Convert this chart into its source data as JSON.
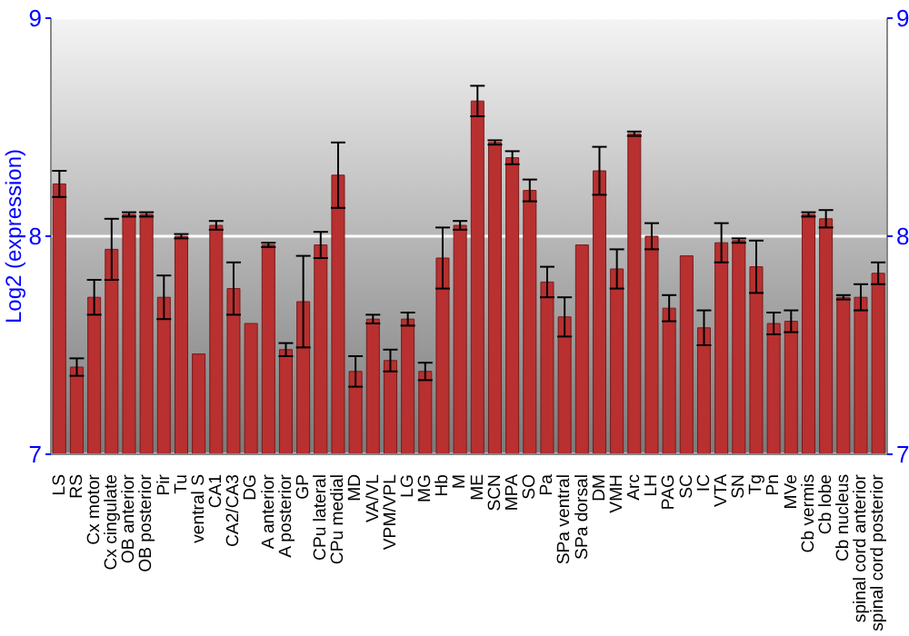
{
  "chart_data": {
    "type": "bar",
    "ylabel": "Log2 (expression)",
    "categories": [
      "LS",
      "RS",
      "Cx motor",
      "Cx cingulate",
      "OB anterior",
      "OB posterior",
      "Pir",
      "Tu",
      "ventral S",
      "CA1",
      "CA2/CA3",
      "DG",
      "A anterior",
      "A posterior",
      "GP",
      "CPu lateral",
      "CPu medial",
      "MD",
      "VA/VL",
      "VPM/VPL",
      "LG",
      "MG",
      "Hb",
      "M",
      "ME",
      "SCN",
      "MPA",
      "SO",
      "Pa",
      "SPa ventral",
      "SPa dorsal",
      "DM",
      "VMH",
      "Arc",
      "LH",
      "PAG",
      "SC",
      "IC",
      "VTA",
      "SN",
      "Tg",
      "Pn",
      "MVe",
      "Cb vermis",
      "Cb lobe",
      "Cb nucleus",
      "spinal cord anterior",
      "spinal cord posterior"
    ],
    "values": [
      8.24,
      7.4,
      7.72,
      7.94,
      8.1,
      8.1,
      7.72,
      8.0,
      7.46,
      8.05,
      7.76,
      7.6,
      7.96,
      7.48,
      7.7,
      7.96,
      8.28,
      7.38,
      7.62,
      7.43,
      7.62,
      7.38,
      7.9,
      8.05,
      8.62,
      8.43,
      8.36,
      8.21,
      7.79,
      7.63,
      7.96,
      8.3,
      7.85,
      8.47,
      8.0,
      7.67,
      7.91,
      7.58,
      7.97,
      7.98,
      7.86,
      7.6,
      7.61,
      8.1,
      8.08,
      7.72,
      7.72,
      7.83
    ],
    "errors": [
      0.06,
      0.04,
      0.08,
      0.14,
      0.01,
      0.01,
      0.1,
      0.01,
      null,
      0.02,
      0.12,
      null,
      0.01,
      0.03,
      0.21,
      0.06,
      0.15,
      0.07,
      0.02,
      0.05,
      0.03,
      0.04,
      0.14,
      0.02,
      0.07,
      0.01,
      0.03,
      0.05,
      0.07,
      0.09,
      null,
      0.11,
      0.09,
      0.01,
      0.06,
      0.06,
      null,
      0.08,
      0.09,
      0.01,
      0.12,
      0.05,
      0.05,
      0.01,
      0.04,
      0.01,
      0.06,
      0.05
    ],
    "color": "#b83030",
    "ylim": [
      7,
      9
    ],
    "yticks": [
      7,
      8,
      9
    ],
    "y2lim": [
      7,
      9
    ],
    "y2ticks": [
      7,
      8,
      9
    ],
    "grid": "y"
  }
}
